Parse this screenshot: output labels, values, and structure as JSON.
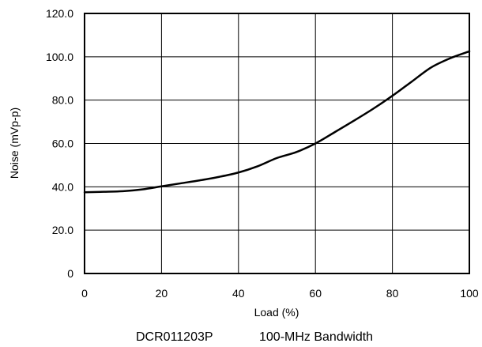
{
  "chart_data": {
    "type": "line",
    "xlabel": "Load (%)",
    "ylabel": "Noise (mVp-p)",
    "xlim": [
      0,
      100
    ],
    "ylim": [
      0,
      120
    ],
    "grid": true,
    "x_ticks": [
      "0",
      "20",
      "40",
      "60",
      "80",
      "100"
    ],
    "y_ticks": [
      "0",
      "20.0",
      "40.0",
      "60.0",
      "80.0",
      "100.0",
      "120.0"
    ],
    "caption": {
      "device": "DCR011203P",
      "bandwidth": "100-MHz Bandwidth"
    },
    "series": [
      {
        "x": [
          0,
          5,
          10,
          15,
          20,
          25,
          30,
          35,
          40,
          45,
          50,
          55,
          60,
          65,
          70,
          75,
          80,
          85,
          90,
          95,
          100
        ],
        "values": [
          37.5,
          37.7,
          38.0,
          38.8,
          40.2,
          41.6,
          43.0,
          44.6,
          46.6,
          49.5,
          53.3,
          56.0,
          60.0,
          65.2,
          70.5,
          76.0,
          82.0,
          88.5,
          95.0,
          99.3,
          102.5
        ]
      }
    ]
  },
  "colors": {
    "line": "#000000",
    "grid": "#000000",
    "background": "#ffffff"
  }
}
